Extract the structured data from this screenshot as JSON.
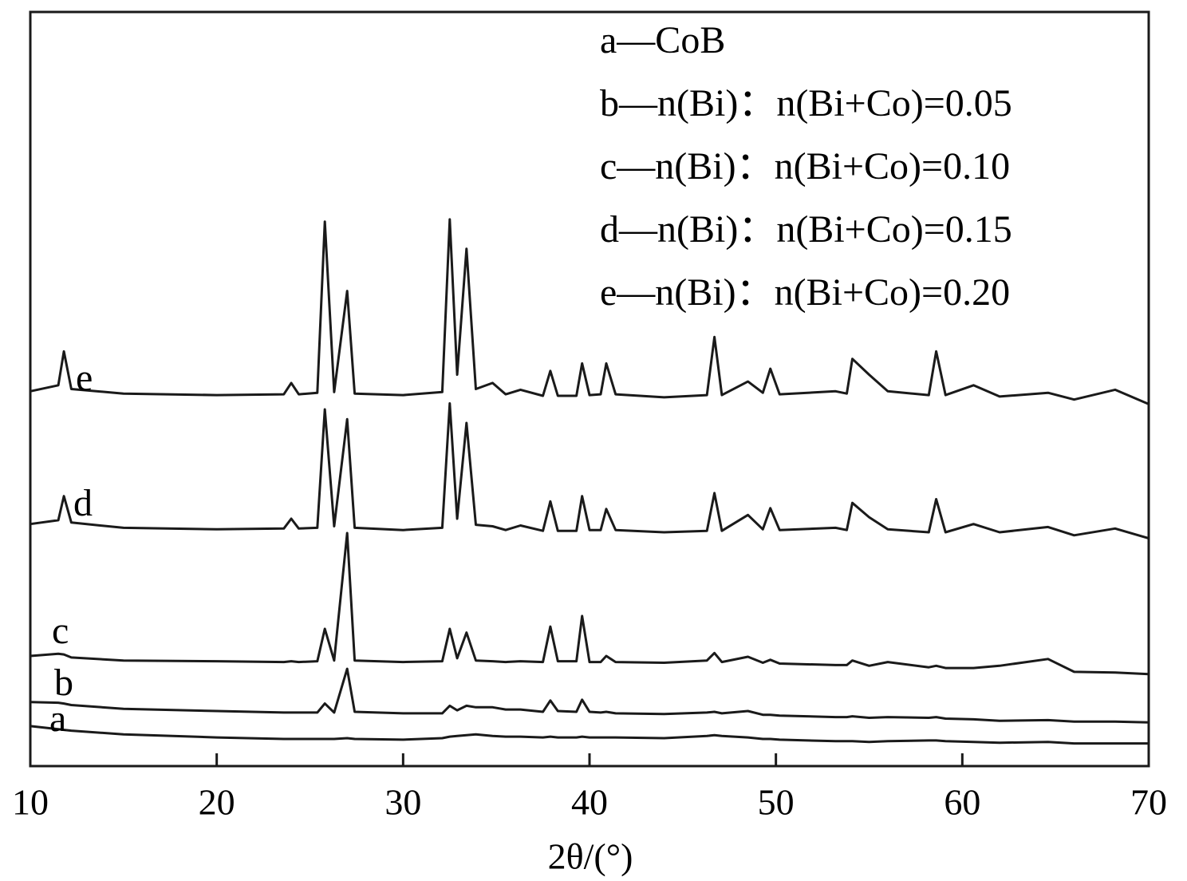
{
  "chart_data": {
    "type": "line",
    "xlabel": "2θ/(°)",
    "xlim": [
      10,
      70
    ],
    "xticks": [
      10,
      20,
      30,
      40,
      50,
      60,
      70
    ],
    "ylim": [
      0,
      100
    ],
    "legend": "upper right",
    "curve_labels": [
      "a",
      "b",
      "c",
      "d",
      "e"
    ],
    "x": [
      10,
      11.5,
      11.8,
      12.2,
      15,
      20,
      23.6,
      24,
      24.4,
      25.4,
      25.8,
      26.3,
      27,
      27.4,
      30,
      32.1,
      32.5,
      32.9,
      33.4,
      33.9,
      34.8,
      35.5,
      36.3,
      37.5,
      37.9,
      38.3,
      39.3,
      39.6,
      40,
      40.6,
      40.9,
      41.4,
      44,
      46.3,
      46.7,
      47.1,
      48.5,
      49.3,
      49.7,
      50.2,
      53.2,
      53.8,
      54.1,
      55,
      56,
      58.2,
      58.6,
      59.1,
      60.6,
      62,
      64.6,
      66,
      68.2,
      70
    ],
    "series": [
      {
        "name": "a—CoB",
        "color": "#1a1a1a",
        "values": [
          5.3,
          4.9,
          4.8,
          4.7,
          4.2,
          3.8,
          3.6,
          3.6,
          3.6,
          3.6,
          3.6,
          3.6,
          3.7,
          3.6,
          3.5,
          3.7,
          3.9,
          4.0,
          4.1,
          4.2,
          4.0,
          3.9,
          3.9,
          3.8,
          3.9,
          3.8,
          3.8,
          3.9,
          3.8,
          3.8,
          3.8,
          3.8,
          3.7,
          4.0,
          4.1,
          4.0,
          3.8,
          3.6,
          3.6,
          3.5,
          3.3,
          3.3,
          3.3,
          3.2,
          3.3,
          3.4,
          3.4,
          3.3,
          3.2,
          3.1,
          3.2,
          3.0,
          3.0,
          3.0
        ]
      },
      {
        "name": "b—n(Bi)：n(Bi+Co)=0.05",
        "color": "#1a1a1a",
        "values": [
          8.5,
          8.4,
          8.3,
          8.1,
          7.6,
          7.3,
          7.1,
          7.1,
          7.1,
          7.1,
          8.3,
          7.1,
          12.9,
          7.2,
          7.0,
          7.0,
          8.0,
          7.4,
          8.0,
          7.8,
          7.8,
          7.5,
          7.5,
          7.2,
          8.7,
          7.3,
          7.2,
          8.8,
          7.2,
          7.1,
          7.2,
          7.0,
          6.9,
          7.1,
          7.2,
          7.0,
          7.3,
          6.8,
          6.8,
          6.7,
          6.5,
          6.5,
          6.6,
          6.4,
          6.5,
          6.4,
          6.5,
          6.3,
          6.2,
          6.0,
          6.1,
          5.9,
          5.9,
          5.8
        ]
      },
      {
        "name": "c—n(Bi)：n(Bi+Co)=0.10",
        "color": "#1a1a1a",
        "values": [
          14.6,
          14.9,
          14.8,
          14.4,
          14.0,
          13.9,
          13.8,
          13.9,
          13.8,
          13.9,
          18.2,
          14.0,
          30.9,
          14.0,
          13.8,
          13.9,
          18.2,
          14.3,
          17.7,
          14.0,
          13.9,
          13.8,
          13.9,
          13.8,
          18.5,
          13.9,
          13.9,
          19.9,
          13.8,
          13.8,
          14.6,
          13.8,
          13.7,
          14.0,
          15.0,
          13.8,
          14.5,
          13.7,
          14.1,
          13.6,
          13.4,
          13.4,
          14.0,
          13.3,
          13.8,
          13.1,
          13.3,
          13.0,
          13.0,
          13.3,
          14.2,
          12.5,
          12.4,
          12.2
        ]
      },
      {
        "name": "d—n(Bi)：n(Bi+Co)=0.15",
        "color": "#1a1a1a",
        "values": [
          32.1,
          32.6,
          35.8,
          32.3,
          31.6,
          31.4,
          31.5,
          32.8,
          31.5,
          31.6,
          47.3,
          31.8,
          46.0,
          31.6,
          31.3,
          31.6,
          48.1,
          32.8,
          45.5,
          32.0,
          31.8,
          31.3,
          31.9,
          31.2,
          35.1,
          31.2,
          31.2,
          35.8,
          31.3,
          31.3,
          34.1,
          31.3,
          31.0,
          31.2,
          36.2,
          31.2,
          33.3,
          31.4,
          34.2,
          31.3,
          31.6,
          31.3,
          34.9,
          33.0,
          31.4,
          31.0,
          35.4,
          31.0,
          32.1,
          31.0,
          31.7,
          30.6,
          31.5,
          30.2
        ]
      },
      {
        "name": "e—n(Bi)：n(Bi+Co)=0.20",
        "color": "#1a1a1a",
        "values": [
          49.7,
          50.5,
          55.0,
          50.0,
          49.4,
          49.2,
          49.3,
          50.8,
          49.3,
          49.5,
          72.2,
          49.6,
          63.0,
          49.4,
          49.2,
          49.6,
          72.5,
          51.9,
          68.6,
          50.0,
          50.8,
          49.3,
          49.9,
          49.1,
          52.4,
          49.1,
          49.1,
          53.4,
          49.2,
          49.3,
          53.4,
          49.3,
          48.9,
          49.2,
          56.9,
          49.2,
          51.0,
          49.5,
          52.7,
          49.3,
          49.7,
          49.4,
          54.0,
          51.9,
          49.7,
          49.2,
          55.0,
          49.2,
          50.5,
          49.0,
          49.5,
          48.6,
          49.9,
          48.0
        ]
      }
    ]
  }
}
